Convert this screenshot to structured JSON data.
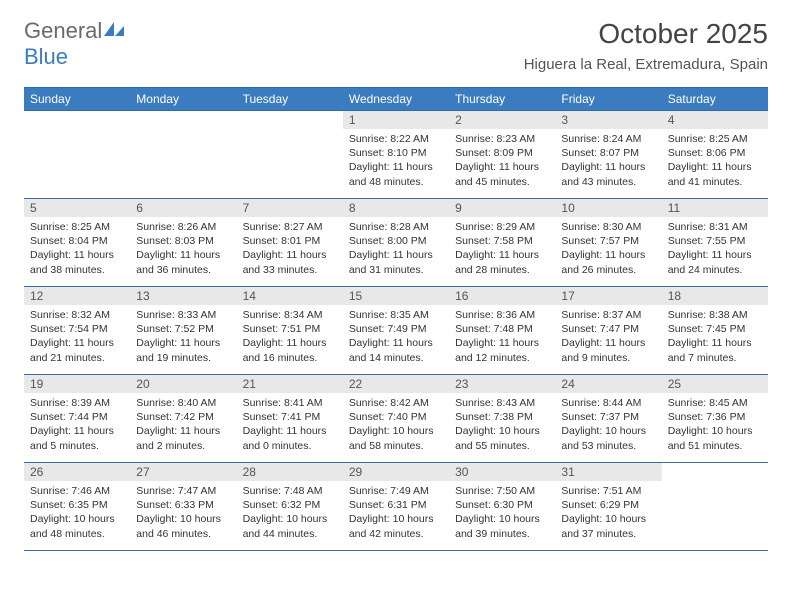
{
  "logo": {
    "word1": "General",
    "word2": "Blue"
  },
  "title": "October 2025",
  "location": "Higuera la Real, Extremadura, Spain",
  "colors": {
    "header_bg": "#3b7bbf",
    "header_text": "#ffffff",
    "daynum_bg": "#e8e8e8",
    "row_border": "#3b6fa0",
    "logo_gray": "#6a6a6a",
    "logo_blue": "#3b7bbf"
  },
  "typography": {
    "month_title_pt": 28,
    "location_pt": 15,
    "dayheader_pt": 12,
    "daynum_pt": 12,
    "body_pt": 10.5
  },
  "day_headers": [
    "Sunday",
    "Monday",
    "Tuesday",
    "Wednesday",
    "Thursday",
    "Friday",
    "Saturday"
  ],
  "weeks": [
    [
      null,
      null,
      null,
      {
        "n": "1",
        "sr": "Sunrise: 8:22 AM",
        "ss": "Sunset: 8:10 PM",
        "dl": "Daylight: 11 hours and 48 minutes."
      },
      {
        "n": "2",
        "sr": "Sunrise: 8:23 AM",
        "ss": "Sunset: 8:09 PM",
        "dl": "Daylight: 11 hours and 45 minutes."
      },
      {
        "n": "3",
        "sr": "Sunrise: 8:24 AM",
        "ss": "Sunset: 8:07 PM",
        "dl": "Daylight: 11 hours and 43 minutes."
      },
      {
        "n": "4",
        "sr": "Sunrise: 8:25 AM",
        "ss": "Sunset: 8:06 PM",
        "dl": "Daylight: 11 hours and 41 minutes."
      }
    ],
    [
      {
        "n": "5",
        "sr": "Sunrise: 8:25 AM",
        "ss": "Sunset: 8:04 PM",
        "dl": "Daylight: 11 hours and 38 minutes."
      },
      {
        "n": "6",
        "sr": "Sunrise: 8:26 AM",
        "ss": "Sunset: 8:03 PM",
        "dl": "Daylight: 11 hours and 36 minutes."
      },
      {
        "n": "7",
        "sr": "Sunrise: 8:27 AM",
        "ss": "Sunset: 8:01 PM",
        "dl": "Daylight: 11 hours and 33 minutes."
      },
      {
        "n": "8",
        "sr": "Sunrise: 8:28 AM",
        "ss": "Sunset: 8:00 PM",
        "dl": "Daylight: 11 hours and 31 minutes."
      },
      {
        "n": "9",
        "sr": "Sunrise: 8:29 AM",
        "ss": "Sunset: 7:58 PM",
        "dl": "Daylight: 11 hours and 28 minutes."
      },
      {
        "n": "10",
        "sr": "Sunrise: 8:30 AM",
        "ss": "Sunset: 7:57 PM",
        "dl": "Daylight: 11 hours and 26 minutes."
      },
      {
        "n": "11",
        "sr": "Sunrise: 8:31 AM",
        "ss": "Sunset: 7:55 PM",
        "dl": "Daylight: 11 hours and 24 minutes."
      }
    ],
    [
      {
        "n": "12",
        "sr": "Sunrise: 8:32 AM",
        "ss": "Sunset: 7:54 PM",
        "dl": "Daylight: 11 hours and 21 minutes."
      },
      {
        "n": "13",
        "sr": "Sunrise: 8:33 AM",
        "ss": "Sunset: 7:52 PM",
        "dl": "Daylight: 11 hours and 19 minutes."
      },
      {
        "n": "14",
        "sr": "Sunrise: 8:34 AM",
        "ss": "Sunset: 7:51 PM",
        "dl": "Daylight: 11 hours and 16 minutes."
      },
      {
        "n": "15",
        "sr": "Sunrise: 8:35 AM",
        "ss": "Sunset: 7:49 PM",
        "dl": "Daylight: 11 hours and 14 minutes."
      },
      {
        "n": "16",
        "sr": "Sunrise: 8:36 AM",
        "ss": "Sunset: 7:48 PM",
        "dl": "Daylight: 11 hours and 12 minutes."
      },
      {
        "n": "17",
        "sr": "Sunrise: 8:37 AM",
        "ss": "Sunset: 7:47 PM",
        "dl": "Daylight: 11 hours and 9 minutes."
      },
      {
        "n": "18",
        "sr": "Sunrise: 8:38 AM",
        "ss": "Sunset: 7:45 PM",
        "dl": "Daylight: 11 hours and 7 minutes."
      }
    ],
    [
      {
        "n": "19",
        "sr": "Sunrise: 8:39 AM",
        "ss": "Sunset: 7:44 PM",
        "dl": "Daylight: 11 hours and 5 minutes."
      },
      {
        "n": "20",
        "sr": "Sunrise: 8:40 AM",
        "ss": "Sunset: 7:42 PM",
        "dl": "Daylight: 11 hours and 2 minutes."
      },
      {
        "n": "21",
        "sr": "Sunrise: 8:41 AM",
        "ss": "Sunset: 7:41 PM",
        "dl": "Daylight: 11 hours and 0 minutes."
      },
      {
        "n": "22",
        "sr": "Sunrise: 8:42 AM",
        "ss": "Sunset: 7:40 PM",
        "dl": "Daylight: 10 hours and 58 minutes."
      },
      {
        "n": "23",
        "sr": "Sunrise: 8:43 AM",
        "ss": "Sunset: 7:38 PM",
        "dl": "Daylight: 10 hours and 55 minutes."
      },
      {
        "n": "24",
        "sr": "Sunrise: 8:44 AM",
        "ss": "Sunset: 7:37 PM",
        "dl": "Daylight: 10 hours and 53 minutes."
      },
      {
        "n": "25",
        "sr": "Sunrise: 8:45 AM",
        "ss": "Sunset: 7:36 PM",
        "dl": "Daylight: 10 hours and 51 minutes."
      }
    ],
    [
      {
        "n": "26",
        "sr": "Sunrise: 7:46 AM",
        "ss": "Sunset: 6:35 PM",
        "dl": "Daylight: 10 hours and 48 minutes."
      },
      {
        "n": "27",
        "sr": "Sunrise: 7:47 AM",
        "ss": "Sunset: 6:33 PM",
        "dl": "Daylight: 10 hours and 46 minutes."
      },
      {
        "n": "28",
        "sr": "Sunrise: 7:48 AM",
        "ss": "Sunset: 6:32 PM",
        "dl": "Daylight: 10 hours and 44 minutes."
      },
      {
        "n": "29",
        "sr": "Sunrise: 7:49 AM",
        "ss": "Sunset: 6:31 PM",
        "dl": "Daylight: 10 hours and 42 minutes."
      },
      {
        "n": "30",
        "sr": "Sunrise: 7:50 AM",
        "ss": "Sunset: 6:30 PM",
        "dl": "Daylight: 10 hours and 39 minutes."
      },
      {
        "n": "31",
        "sr": "Sunrise: 7:51 AM",
        "ss": "Sunset: 6:29 PM",
        "dl": "Daylight: 10 hours and 37 minutes."
      },
      null
    ]
  ]
}
